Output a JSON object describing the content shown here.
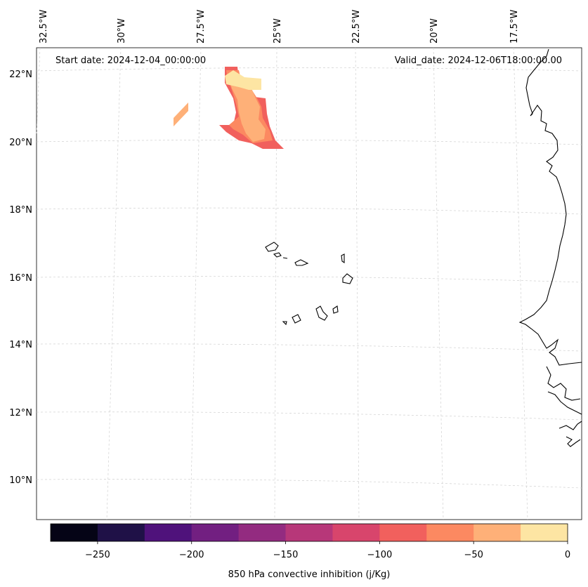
{
  "map": {
    "start_date_label": "Start date: 2024-12-04_00:00:00",
    "valid_date_label": "Valid_date: 2024-12-06T18:00:00.00",
    "lon_labels": [
      "32.5°W",
      "30°W",
      "27.5°W",
      "25°W",
      "22.5°W",
      "20°W",
      "17.5°W"
    ],
    "lat_labels": [
      "22°N",
      "20°N",
      "18°N",
      "16°N",
      "14°N",
      "12°N",
      "10°N"
    ],
    "gridlines": true,
    "coastline_color": "#000000",
    "gridline_color": "#cccccc"
  },
  "colorbar": {
    "label": "850 hPa convective inhibition (j/Kg)",
    "tick_labels": [
      "−250",
      "−200",
      "−150",
      "−100",
      "−50",
      "0"
    ],
    "min": -275,
    "max": 0,
    "step": 25,
    "colors": [
      "#050416",
      "#1f1147",
      "#4f127b",
      "#721f81",
      "#932b80",
      "#b73779",
      "#d8456c",
      "#f1605d",
      "#fc8961",
      "#feb078",
      "#fde5a3"
    ]
  }
}
